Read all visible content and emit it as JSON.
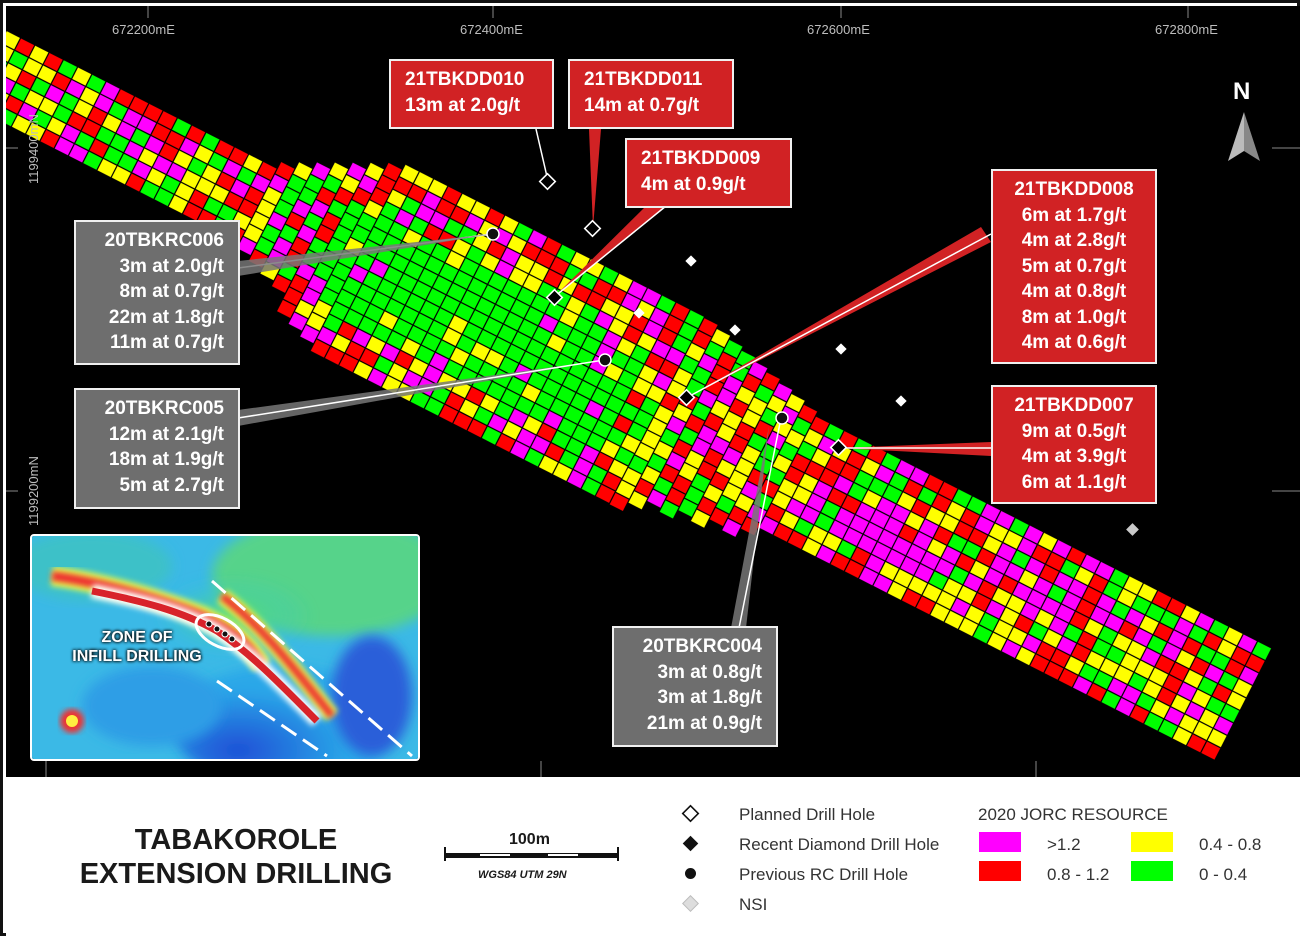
{
  "grid": {
    "eastings": [
      "672200mE",
      "672400mE",
      "672600mE",
      "672800mE"
    ],
    "northings": [
      "1199400mN",
      "1199200mN"
    ]
  },
  "north_arrow": {
    "label": "N"
  },
  "callouts": [
    {
      "id": "21TBKDD010",
      "kind": "recent",
      "title": "21TBKDD010",
      "rows": [
        "13m at 2.0g/t"
      ]
    },
    {
      "id": "21TBKDD011",
      "kind": "recent",
      "title": "21TBKDD011",
      "rows": [
        "14m at 0.7g/t"
      ]
    },
    {
      "id": "21TBKDD009",
      "kind": "recent",
      "title": "21TBKDD009",
      "rows": [
        "4m at 0.9g/t"
      ]
    },
    {
      "id": "21TBKDD008",
      "kind": "recent",
      "title": "21TBKDD008",
      "rows": [
        "6m at 1.7g/t",
        "4m at 2.8g/t",
        "5m at 0.7g/t",
        "4m at 0.8g/t",
        "8m at 1.0g/t",
        "4m at 0.6g/t"
      ]
    },
    {
      "id": "21TBKDD007",
      "kind": "recent",
      "title": "21TBKDD007",
      "rows": [
        "9m at 0.5g/t",
        "4m at 3.9g/t",
        "6m at 1.1g/t"
      ]
    },
    {
      "id": "20TBKRC006",
      "kind": "previous",
      "title": "20TBKRC006",
      "rows": [
        "3m at 2.0g/t",
        "8m at 0.7g/t",
        "22m at 1.8g/t",
        "11m at 0.7g/t"
      ]
    },
    {
      "id": "20TBKRC005",
      "kind": "previous",
      "title": "20TBKRC005",
      "rows": [
        "12m at 2.1g/t",
        "18m at 1.9g/t",
        "5m at 2.7g/t"
      ]
    },
    {
      "id": "20TBKRC004",
      "kind": "previous",
      "title": "20TBKRC004",
      "rows": [
        "3m at 0.8g/t",
        "3m at 1.8g/t",
        "21m at 0.9g/t"
      ]
    }
  ],
  "inset": {
    "label_line1": "ZONE OF",
    "label_line2": "INFILL DRILLING"
  },
  "title": {
    "line1": "TABAKOROLE",
    "line2": "EXTENSION DRILLING"
  },
  "scale_bar": {
    "label": "100m",
    "projection": "WGS84 UTM 29N"
  },
  "legend": {
    "symbols": [
      {
        "icon": "diamond-outline-icon",
        "label": "Planned Drill Hole"
      },
      {
        "icon": "diamond-filled-icon",
        "label": "Recent Diamond Drill Hole"
      },
      {
        "icon": "dot-icon",
        "label": "Previous RC Drill Hole"
      },
      {
        "icon": "diamond-grey-icon",
        "label": "NSI"
      }
    ],
    "resource_title": "2020 JORC RESOURCE",
    "classes": [
      {
        "color": "#ff00ff",
        "label": ">1.2"
      },
      {
        "color": "#ff0000",
        "label": "0.8 - 1.2"
      },
      {
        "color": "#ffff00",
        "label": "0.4 - 0.8"
      },
      {
        "color": "#00ff00",
        "label": "0 - 0.4"
      }
    ]
  }
}
